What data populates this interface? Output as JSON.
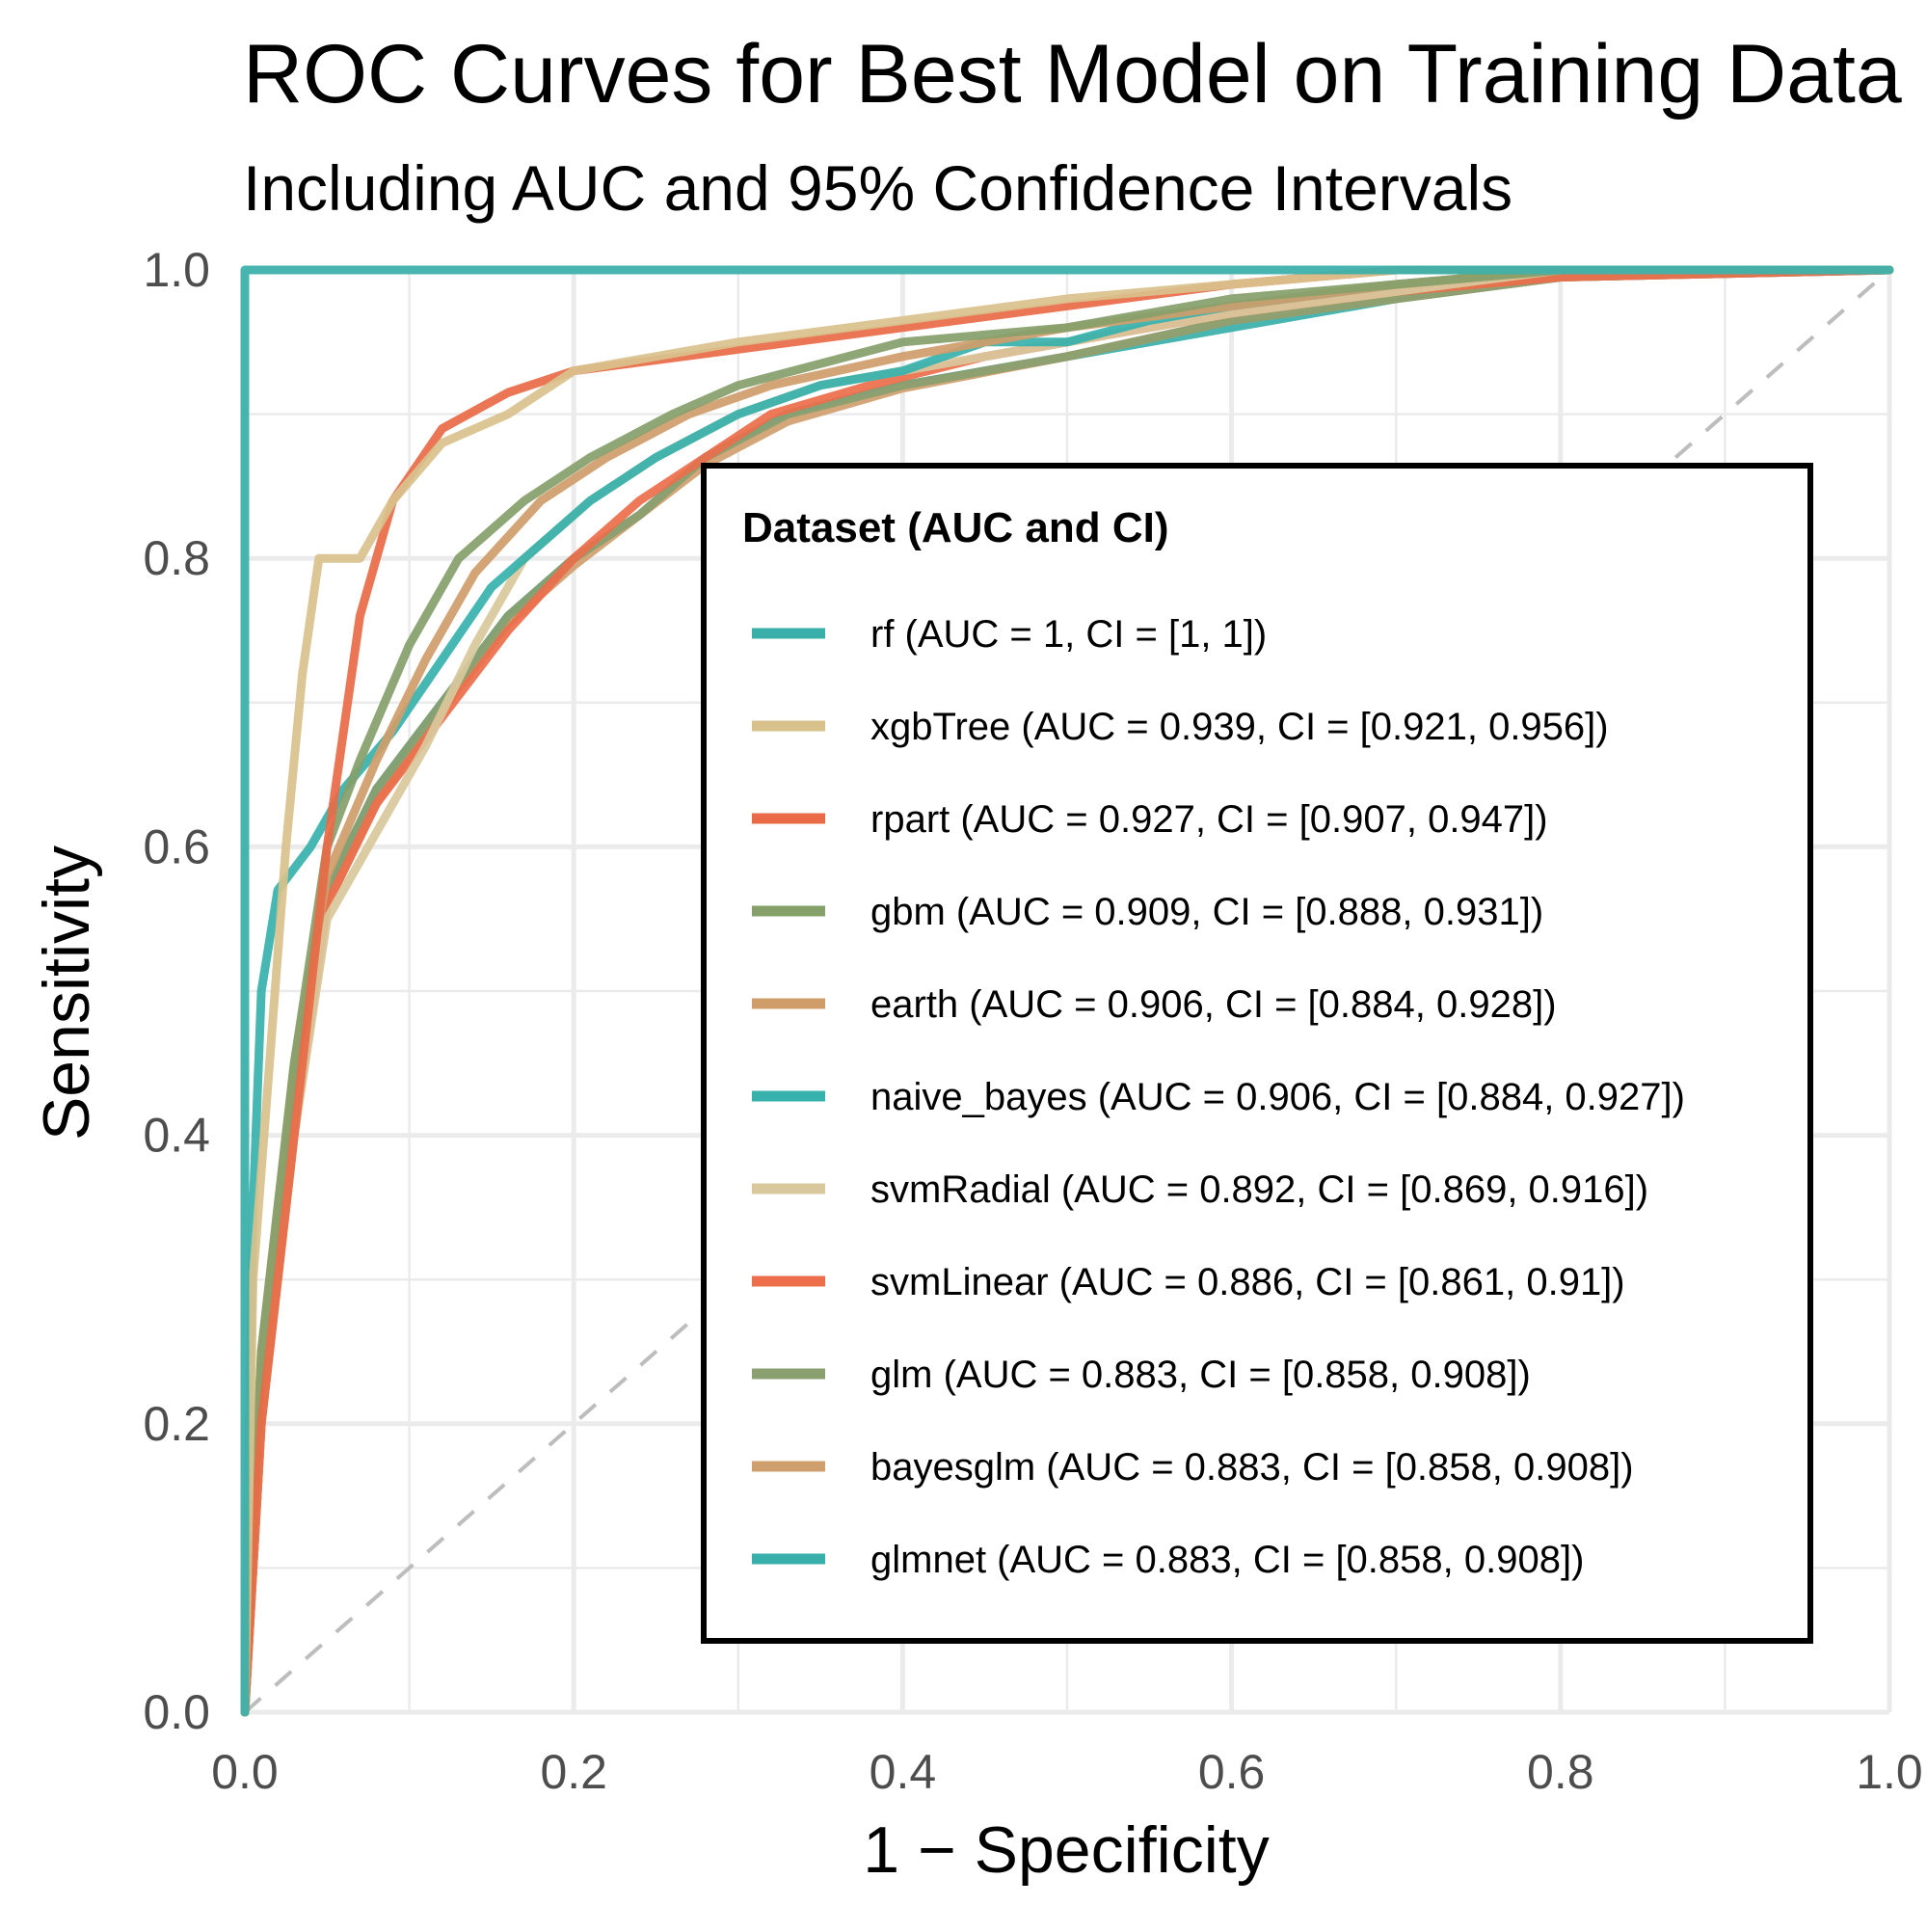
{
  "chart_data": {
    "type": "line",
    "title": "ROC Curves for Best Model on Training Data",
    "subtitle": "Including AUC and 95% Confidence Intervals",
    "xlabel": "1 − Specificity",
    "ylabel": "Sensitivity",
    "xlim": [
      0,
      1
    ],
    "ylim": [
      0,
      1
    ],
    "x_ticks": [
      "0.0",
      "0.2",
      "0.4",
      "0.6",
      "0.8",
      "1.0"
    ],
    "y_ticks": [
      "0.0",
      "0.2",
      "0.4",
      "0.6",
      "0.8",
      "1.0"
    ],
    "grid": true,
    "reference_line": "diagonal",
    "legend": {
      "title": "Dataset (AUC and CI)",
      "position": "right-center"
    },
    "series": [
      {
        "name": "rf (AUC = 1, CI = [1, 1])",
        "color": "#3AAFA9",
        "points": [
          [
            0,
            0
          ],
          [
            0,
            1
          ],
          [
            1,
            1
          ]
        ]
      },
      {
        "name": "xgbTree (AUC = 0.939, CI = [0.921, 0.956])",
        "color": "#D9C18C",
        "points": [
          [
            0,
            0
          ],
          [
            0.005,
            0.3
          ],
          [
            0.015,
            0.45
          ],
          [
            0.025,
            0.6
          ],
          [
            0.035,
            0.72
          ],
          [
            0.045,
            0.8
          ],
          [
            0.07,
            0.8
          ],
          [
            0.09,
            0.84
          ],
          [
            0.12,
            0.88
          ],
          [
            0.16,
            0.9
          ],
          [
            0.2,
            0.93
          ],
          [
            0.3,
            0.95
          ],
          [
            0.4,
            0.965
          ],
          [
            0.5,
            0.98
          ],
          [
            0.6,
            0.99
          ],
          [
            0.7,
            1
          ],
          [
            1,
            1
          ]
        ]
      },
      {
        "name": "rpart (AUC = 0.927, CI = [0.907, 0.947])",
        "color": "#E86A47",
        "points": [
          [
            0,
            0
          ],
          [
            0.01,
            0.2
          ],
          [
            0.03,
            0.4
          ],
          [
            0.05,
            0.6
          ],
          [
            0.07,
            0.76
          ],
          [
            0.09,
            0.84
          ],
          [
            0.12,
            0.89
          ],
          [
            0.16,
            0.915
          ],
          [
            0.2,
            0.93
          ],
          [
            0.3,
            0.945
          ],
          [
            0.4,
            0.96
          ],
          [
            0.5,
            0.975
          ],
          [
            0.6,
            0.99
          ],
          [
            0.7,
            1
          ],
          [
            1,
            1
          ]
        ]
      },
      {
        "name": "gbm (AUC = 0.909, CI = [0.888, 0.931])",
        "color": "#86A06A",
        "points": [
          [
            0,
            0
          ],
          [
            0.01,
            0.25
          ],
          [
            0.03,
            0.45
          ],
          [
            0.05,
            0.6
          ],
          [
            0.07,
            0.66
          ],
          [
            0.1,
            0.74
          ],
          [
            0.13,
            0.8
          ],
          [
            0.17,
            0.84
          ],
          [
            0.21,
            0.87
          ],
          [
            0.26,
            0.9
          ],
          [
            0.3,
            0.92
          ],
          [
            0.4,
            0.95
          ],
          [
            0.5,
            0.96
          ],
          [
            0.6,
            0.98
          ],
          [
            0.7,
            0.99
          ],
          [
            0.8,
            1
          ],
          [
            1,
            1
          ]
        ]
      },
      {
        "name": "earth (AUC = 0.906, CI = [0.884, 0.928])",
        "color": "#CF9D6A",
        "points": [
          [
            0,
            0
          ],
          [
            0.01,
            0.25
          ],
          [
            0.03,
            0.45
          ],
          [
            0.05,
            0.58
          ],
          [
            0.08,
            0.66
          ],
          [
            0.11,
            0.73
          ],
          [
            0.14,
            0.79
          ],
          [
            0.18,
            0.84
          ],
          [
            0.22,
            0.87
          ],
          [
            0.27,
            0.9
          ],
          [
            0.32,
            0.92
          ],
          [
            0.4,
            0.94
          ],
          [
            0.5,
            0.96
          ],
          [
            0.6,
            0.975
          ],
          [
            0.7,
            0.99
          ],
          [
            0.8,
            1
          ],
          [
            1,
            1
          ]
        ]
      },
      {
        "name": "naive_bayes (AUC = 0.906, CI = [0.884, 0.927])",
        "color": "#36B1AC",
        "points": [
          [
            0,
            0
          ],
          [
            0.005,
            0.35
          ],
          [
            0.01,
            0.5
          ],
          [
            0.02,
            0.57
          ],
          [
            0.04,
            0.6
          ],
          [
            0.06,
            0.64
          ],
          [
            0.09,
            0.68
          ],
          [
            0.12,
            0.73
          ],
          [
            0.15,
            0.78
          ],
          [
            0.18,
            0.81
          ],
          [
            0.21,
            0.84
          ],
          [
            0.25,
            0.87
          ],
          [
            0.3,
            0.9
          ],
          [
            0.35,
            0.92
          ],
          [
            0.4,
            0.93
          ],
          [
            0.45,
            0.95
          ],
          [
            0.5,
            0.95
          ],
          [
            0.55,
            0.965
          ],
          [
            0.6,
            0.975
          ],
          [
            0.7,
            0.99
          ],
          [
            0.8,
            1
          ],
          [
            1,
            1
          ]
        ]
      },
      {
        "name": "svmRadial (AUC = 0.892, CI = [0.869, 0.916])",
        "color": "#D9C89C",
        "points": [
          [
            0,
            0
          ],
          [
            0.01,
            0.2
          ],
          [
            0.03,
            0.4
          ],
          [
            0.05,
            0.55
          ],
          [
            0.08,
            0.61
          ],
          [
            0.11,
            0.67
          ],
          [
            0.14,
            0.74
          ],
          [
            0.17,
            0.8
          ],
          [
            0.21,
            0.84
          ],
          [
            0.25,
            0.87
          ],
          [
            0.3,
            0.9
          ],
          [
            0.35,
            0.92
          ],
          [
            0.4,
            0.93
          ],
          [
            0.5,
            0.95
          ],
          [
            0.6,
            0.97
          ],
          [
            0.7,
            0.985
          ],
          [
            0.8,
            1
          ],
          [
            1,
            1
          ]
        ]
      },
      {
        "name": "svmLinear (AUC = 0.886, CI = [0.861, 0.91])",
        "color": "#EC6E4B",
        "points": [
          [
            0,
            0
          ],
          [
            0.01,
            0.2
          ],
          [
            0.03,
            0.4
          ],
          [
            0.05,
            0.56
          ],
          [
            0.08,
            0.63
          ],
          [
            0.12,
            0.69
          ],
          [
            0.16,
            0.75
          ],
          [
            0.2,
            0.8
          ],
          [
            0.24,
            0.84
          ],
          [
            0.28,
            0.87
          ],
          [
            0.32,
            0.9
          ],
          [
            0.38,
            0.92
          ],
          [
            0.45,
            0.94
          ],
          [
            0.5,
            0.95
          ],
          [
            0.6,
            0.97
          ],
          [
            0.7,
            0.985
          ],
          [
            0.8,
            0.995
          ],
          [
            1,
            1
          ]
        ]
      },
      {
        "name": "glm (AUC = 0.883, CI = [0.858, 0.908])",
        "color": "#8AA070",
        "points": [
          [
            0,
            0
          ],
          [
            0.01,
            0.2
          ],
          [
            0.03,
            0.42
          ],
          [
            0.05,
            0.57
          ],
          [
            0.08,
            0.64
          ],
          [
            0.12,
            0.7
          ],
          [
            0.16,
            0.76
          ],
          [
            0.2,
            0.8
          ],
          [
            0.24,
            0.83
          ],
          [
            0.28,
            0.87
          ],
          [
            0.33,
            0.9
          ],
          [
            0.4,
            0.92
          ],
          [
            0.5,
            0.94
          ],
          [
            0.6,
            0.965
          ],
          [
            0.7,
            0.98
          ],
          [
            0.8,
            0.995
          ],
          [
            1,
            1
          ]
        ]
      },
      {
        "name": "bayesglm (AUC = 0.883, CI = [0.858, 0.908])",
        "color": "#CFA06E",
        "points": [
          [
            0,
            0
          ],
          [
            0.01,
            0.2
          ],
          [
            0.03,
            0.41
          ],
          [
            0.05,
            0.56
          ],
          [
            0.08,
            0.63
          ],
          [
            0.12,
            0.695
          ],
          [
            0.16,
            0.755
          ],
          [
            0.2,
            0.795
          ],
          [
            0.24,
            0.83
          ],
          [
            0.28,
            0.865
          ],
          [
            0.33,
            0.895
          ],
          [
            0.4,
            0.918
          ],
          [
            0.5,
            0.94
          ],
          [
            0.6,
            0.965
          ],
          [
            0.7,
            0.98
          ],
          [
            0.8,
            0.995
          ],
          [
            1,
            1
          ]
        ]
      },
      {
        "name": "glmnet (AUC = 0.883, CI = [0.858, 0.908])",
        "color": "#38AFAA",
        "points": [
          [
            0,
            0
          ],
          [
            0.01,
            0.22
          ],
          [
            0.03,
            0.43
          ],
          [
            0.05,
            0.57
          ],
          [
            0.08,
            0.64
          ],
          [
            0.12,
            0.7
          ],
          [
            0.16,
            0.76
          ],
          [
            0.2,
            0.8
          ],
          [
            0.24,
            0.83
          ],
          [
            0.28,
            0.87
          ],
          [
            0.33,
            0.9
          ],
          [
            0.4,
            0.92
          ],
          [
            0.5,
            0.94
          ],
          [
            0.6,
            0.96
          ],
          [
            0.7,
            0.98
          ],
          [
            0.8,
            0.995
          ],
          [
            1,
            1
          ]
        ]
      }
    ]
  }
}
